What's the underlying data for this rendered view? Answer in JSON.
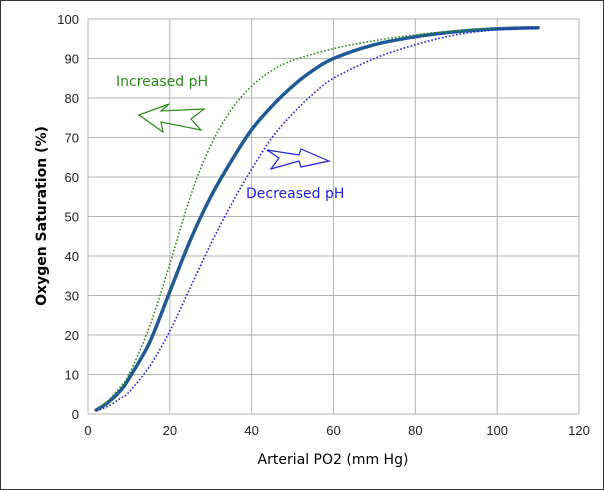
{
  "chart_data": {
    "type": "line",
    "title": "",
    "xlabel": "Arterial PO2 (mm Hg)",
    "ylabel": "Oxygen Saturation (%)",
    "xlim": [
      0,
      120
    ],
    "ylim": [
      0,
      100
    ],
    "xticks": [
      0,
      20,
      40,
      60,
      80,
      100,
      120
    ],
    "yticks": [
      0,
      10,
      20,
      30,
      40,
      50,
      60,
      70,
      80,
      90,
      100
    ],
    "grid": true,
    "series": [
      {
        "style": "solid",
        "color": "#1f5a96",
        "x": [
          2,
          5,
          8,
          10,
          15,
          20,
          25,
          30,
          35,
          40,
          45,
          50,
          55,
          60,
          70,
          80,
          90,
          100,
          110
        ],
        "y": [
          1,
          3,
          6,
          9,
          18,
          31,
          44,
          55,
          64,
          72,
          78,
          83,
          87,
          90,
          93.5,
          95.5,
          96.8,
          97.5,
          97.8
        ]
      },
      {
        "style": "dotted",
        "color": "#2a8a1a",
        "x": [
          2,
          5,
          8,
          10,
          15,
          20,
          25,
          30,
          35,
          40,
          45,
          50,
          60,
          70,
          80,
          90,
          100,
          110
        ],
        "y": [
          1,
          3.5,
          7,
          10,
          22,
          38,
          55,
          68,
          77,
          83,
          87,
          89.5,
          92.5,
          94.5,
          96,
          97,
          97.5,
          97.8
        ]
      },
      {
        "style": "dotted",
        "color": "#2020e0",
        "x": [
          2,
          5,
          8,
          10,
          15,
          20,
          25,
          30,
          35,
          40,
          45,
          50,
          55,
          60,
          70,
          80,
          90,
          100,
          110
        ],
        "y": [
          0.8,
          2,
          4,
          5.5,
          12,
          21,
          32,
          43,
          53,
          62,
          70,
          76,
          81,
          85,
          90,
          93.5,
          96,
          97.3,
          97.8
        ]
      }
    ],
    "annotations": [
      {
        "text": "Increased pH",
        "color": "#2a8a1a",
        "arrow": "left"
      },
      {
        "text": "Decreased pH",
        "color": "#2020e0",
        "arrow": "right"
      }
    ]
  }
}
